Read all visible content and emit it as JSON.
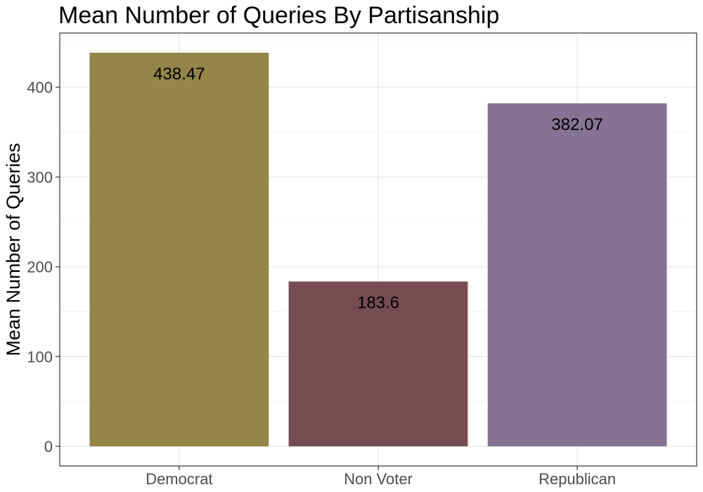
{
  "chart_data": {
    "type": "bar",
    "title": "Mean Number of Queries By Partisanship",
    "xlabel": "",
    "ylabel": "Mean Number of Queries",
    "categories": [
      "Democrat",
      "Non Voter",
      "Republican"
    ],
    "values": [
      438.47,
      183.6,
      382.07
    ],
    "data_labels": [
      "438.47",
      "183.6",
      "382.07"
    ],
    "colors": [
      "#948549",
      "#754c51",
      "#867394"
    ],
    "yticks": [
      0,
      100,
      200,
      300,
      400
    ],
    "ytick_labels": [
      "0",
      "100",
      "200",
      "300",
      "400"
    ],
    "ylim": [
      -21.9,
      460.4
    ],
    "grid": true,
    "legend": "none"
  }
}
